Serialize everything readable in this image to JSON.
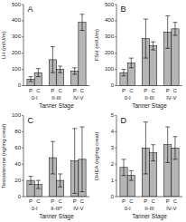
{
  "chart_data": [
    {
      "type": "bar",
      "title": "A",
      "ylabel": "LH (mIU/m)",
      "xlabel": "Tanner Stage",
      "categories": [
        "0-I",
        "II-III",
        "IV-V"
      ],
      "color": "#b5b5b5",
      "series": [
        {
          "name": "P",
          "values": [
            40,
            160,
            90
          ],
          "errors": [
            15,
            80,
            20
          ]
        },
        {
          "name": "C",
          "values": [
            80,
            100,
            390
          ],
          "errors": [
            25,
            20,
            50
          ]
        }
      ],
      "ylim": [
        0,
        500
      ],
      "yticks": [
        0,
        100,
        200,
        300,
        400,
        500
      ]
    },
    {
      "type": "bar",
      "title": "B",
      "ylabel": "FSH (mIU/m)",
      "xlabel": "Tanner Stage",
      "categories": [
        "0-I",
        "II-III",
        "IV-V"
      ],
      "color": "#b5b5b5",
      "series": [
        {
          "name": "P",
          "values": [
            80,
            290,
            330
          ],
          "errors": [
            20,
            120,
            100
          ]
        },
        {
          "name": "C",
          "values": [
            140,
            245,
            350
          ],
          "errors": [
            30,
            25,
            40
          ]
        }
      ],
      "ylim": [
        0,
        500
      ],
      "yticks": [
        0,
        100,
        200,
        300,
        400,
        500
      ]
    },
    {
      "type": "bar",
      "title": "C",
      "ylabel": "Testosterone (ng/mg creat)",
      "xlabel": "Tanner Stage",
      "categories": [
        "0-I",
        "II-III*",
        "IV-V"
      ],
      "color": "#b5b5b5",
      "series": [
        {
          "name": "P",
          "values": [
            20,
            48,
            44
          ],
          "errors": [
            5,
            20,
            40
          ]
        },
        {
          "name": "C",
          "values": [
            15,
            20,
            46
          ],
          "errors": [
            5,
            8,
            40
          ]
        }
      ],
      "ylim": [
        0,
        100
      ],
      "yticks": [
        0,
        20,
        40,
        60,
        80,
        100
      ]
    },
    {
      "type": "bar",
      "title": "D",
      "ylabel": "DHEA (ng/mg creat)",
      "xlabel": "Tanner Stage",
      "categories": [
        "0-I",
        "II-III",
        "IV-V"
      ],
      "color": "#b5b5b5",
      "series": [
        {
          "name": "P",
          "values": [
            1.8,
            3.0,
            3.2
          ],
          "errors": [
            0.5,
            1.6,
            1.1
          ]
        },
        {
          "name": "C",
          "values": [
            1.3,
            2.7,
            3.0
          ],
          "errors": [
            0.3,
            0.5,
            0.7
          ]
        }
      ],
      "ylim": [
        0,
        5
      ],
      "yticks": [
        0,
        1,
        2,
        3,
        4,
        5
      ]
    }
  ]
}
